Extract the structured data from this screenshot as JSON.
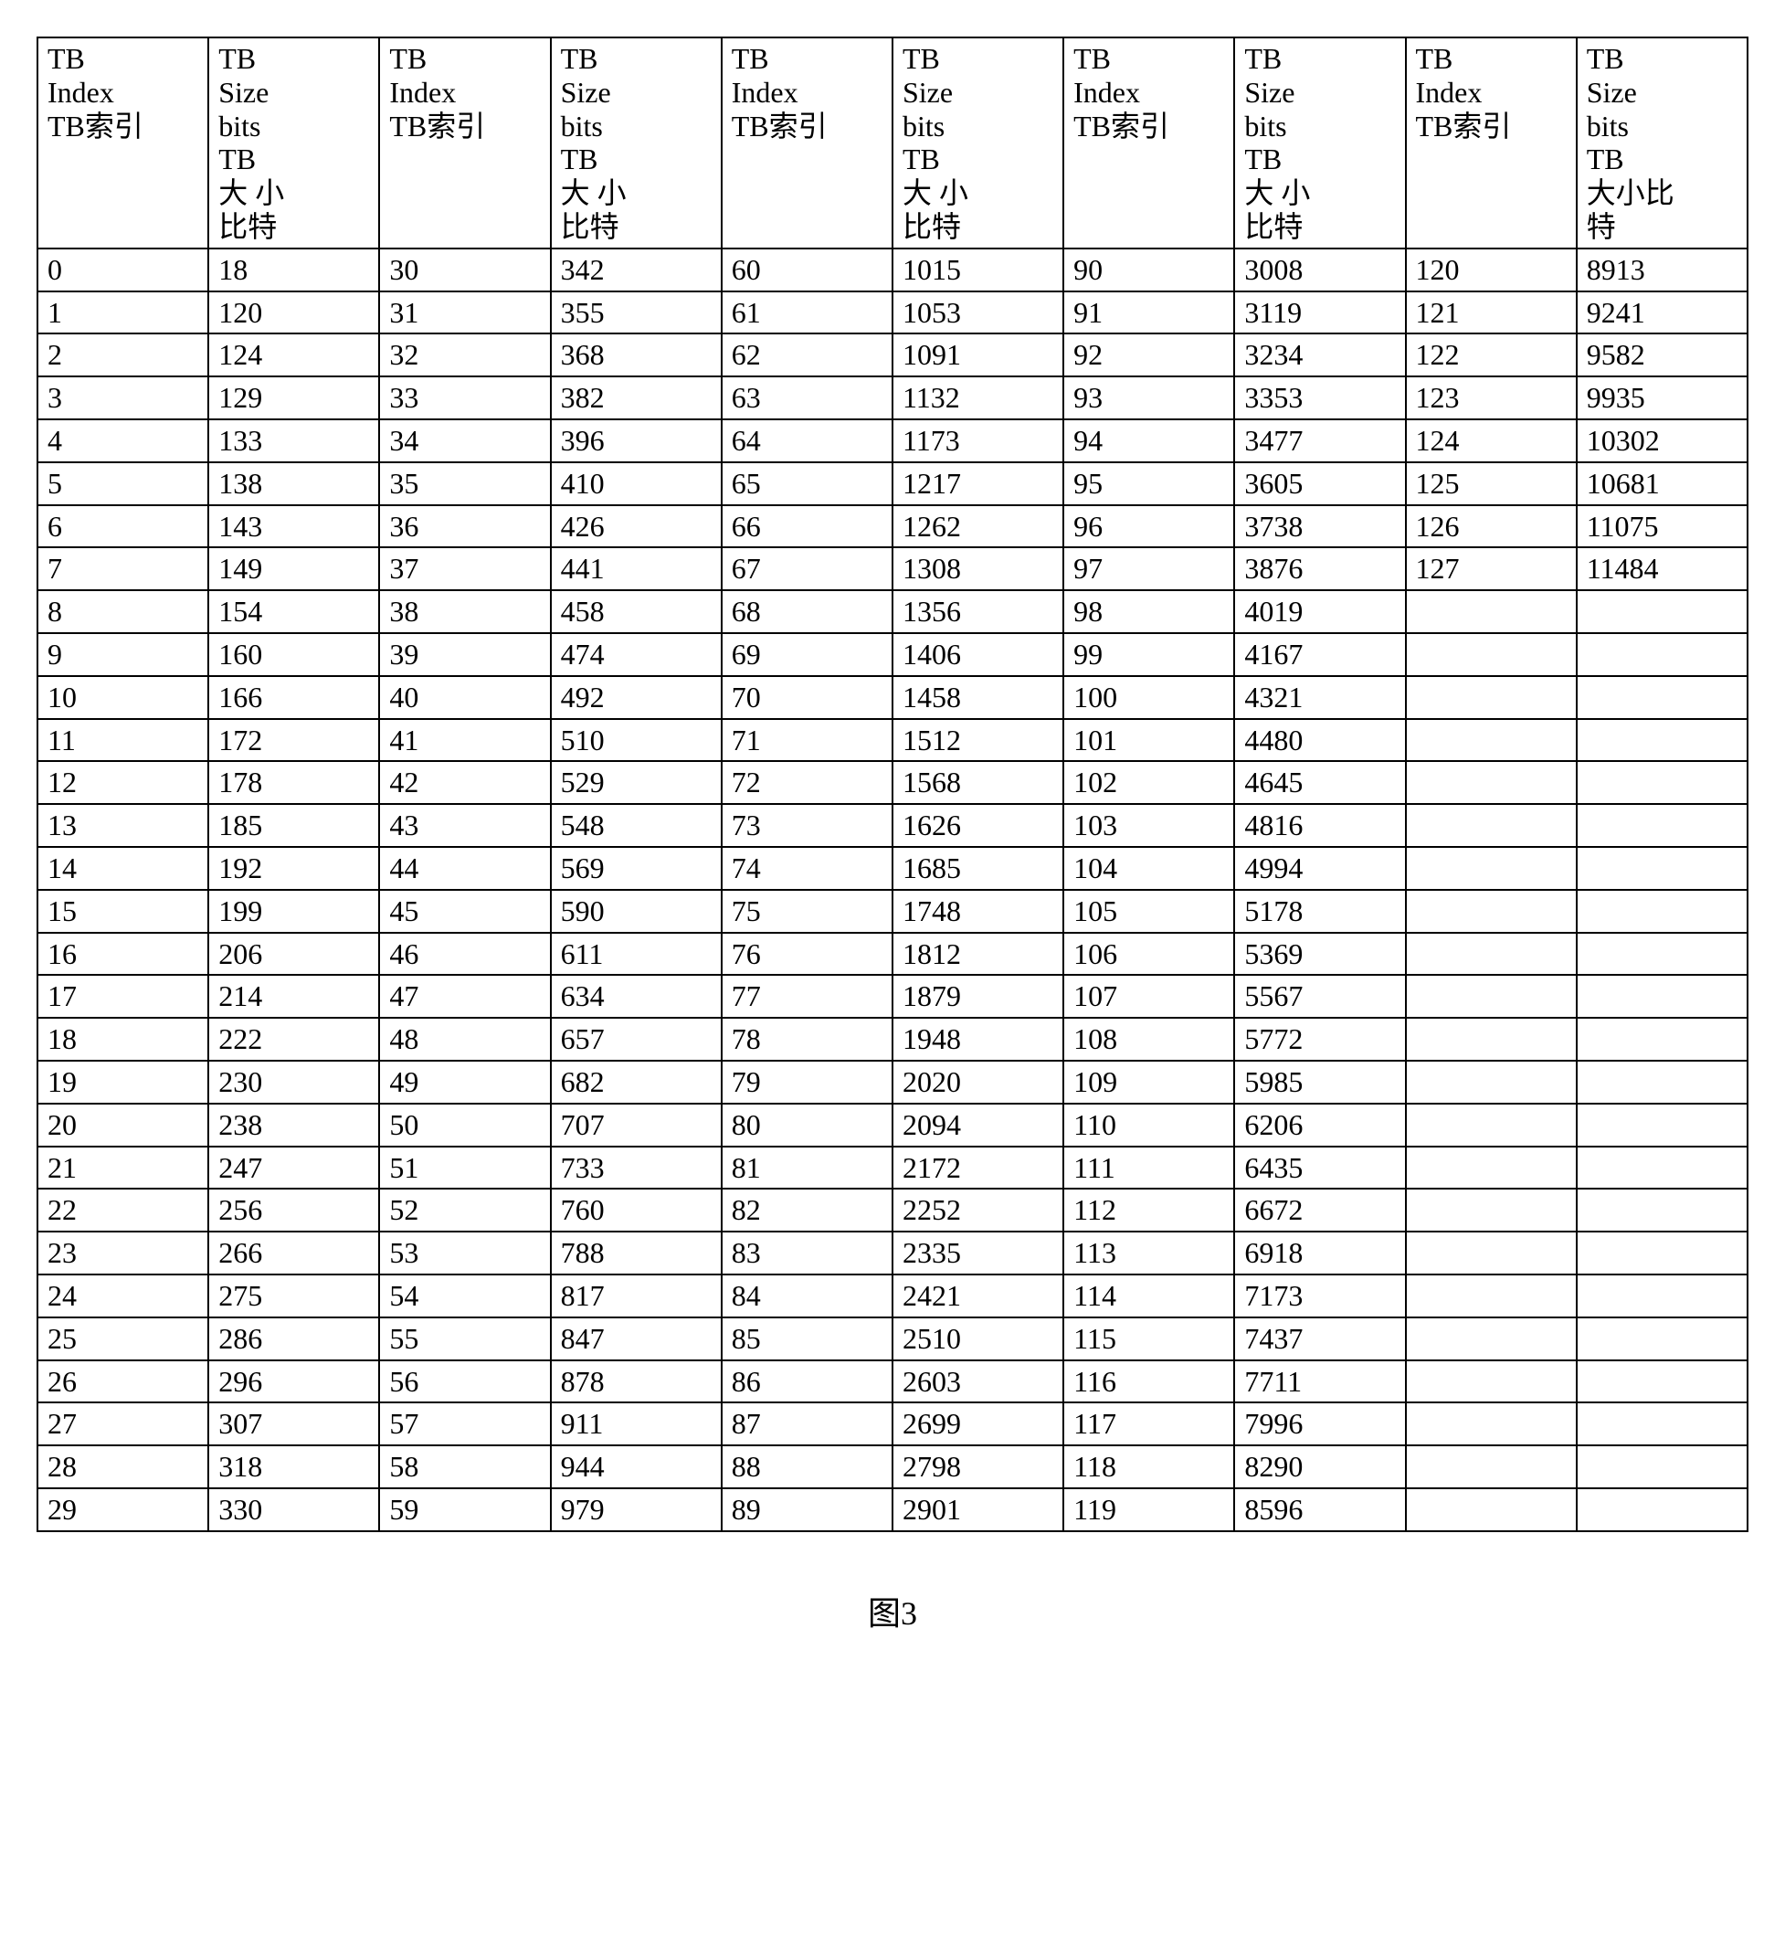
{
  "table": {
    "background_color": "#ffffff",
    "border_color": "#000000",
    "font_family": "Times New Roman / SimSun",
    "header_fontsize": 32,
    "cell_fontsize": 32,
    "border_width": 2,
    "headers": [
      "TB\nIndex\nTB索引",
      "TB\nSize\nbits\nTB\n大 小\n比特",
      "TB\nIndex\nTB索引",
      "TB\nSize\nbits\nTB\n大 小\n比特",
      "TB\nIndex\nTB索引",
      "TB\nSize\nbits\nTB\n大 小\n比特",
      "TB\nIndex\nTB索引",
      "TB\nSize\nbits\nTB\n大 小\n比特",
      "TB\nIndex\nTB索引",
      "TB\nSize\nbits\nTB\n大小比\n特"
    ],
    "rows": [
      [
        "0",
        "18",
        "30",
        "342",
        "60",
        "1015",
        "90",
        "3008",
        "120",
        "8913"
      ],
      [
        "1",
        "120",
        "31",
        "355",
        "61",
        "1053",
        "91",
        "3119",
        "121",
        "9241"
      ],
      [
        "2",
        "124",
        "32",
        "368",
        "62",
        "1091",
        "92",
        "3234",
        "122",
        "9582"
      ],
      [
        "3",
        "129",
        "33",
        "382",
        "63",
        "1132",
        "93",
        "3353",
        "123",
        "9935"
      ],
      [
        "4",
        "133",
        "34",
        "396",
        "64",
        "1173",
        "94",
        "3477",
        "124",
        "10302"
      ],
      [
        "5",
        "138",
        "35",
        "410",
        "65",
        "1217",
        "95",
        "3605",
        "125",
        "10681"
      ],
      [
        "6",
        "143",
        "36",
        "426",
        "66",
        "1262",
        "96",
        "3738",
        "126",
        "11075"
      ],
      [
        "7",
        "149",
        "37",
        "441",
        "67",
        "1308",
        "97",
        "3876",
        "127",
        "11484"
      ],
      [
        "8",
        "154",
        "38",
        "458",
        "68",
        "1356",
        "98",
        "4019",
        "",
        ""
      ],
      [
        "9",
        "160",
        "39",
        "474",
        "69",
        "1406",
        "99",
        "4167",
        "",
        ""
      ],
      [
        "10",
        "166",
        "40",
        "492",
        "70",
        "1458",
        "100",
        "4321",
        "",
        ""
      ],
      [
        "11",
        "172",
        "41",
        "510",
        "71",
        "1512",
        "101",
        "4480",
        "",
        ""
      ],
      [
        "12",
        "178",
        "42",
        "529",
        "72",
        "1568",
        "102",
        "4645",
        "",
        ""
      ],
      [
        "13",
        "185",
        "43",
        "548",
        "73",
        "1626",
        "103",
        "4816",
        "",
        ""
      ],
      [
        "14",
        "192",
        "44",
        "569",
        "74",
        "1685",
        "104",
        "4994",
        "",
        ""
      ],
      [
        "15",
        "199",
        "45",
        "590",
        "75",
        "1748",
        "105",
        "5178",
        "",
        ""
      ],
      [
        "16",
        "206",
        "46",
        "611",
        "76",
        "1812",
        "106",
        "5369",
        "",
        ""
      ],
      [
        "17",
        "214",
        "47",
        "634",
        "77",
        "1879",
        "107",
        "5567",
        "",
        ""
      ],
      [
        "18",
        "222",
        "48",
        "657",
        "78",
        "1948",
        "108",
        "5772",
        "",
        ""
      ],
      [
        "19",
        "230",
        "49",
        "682",
        "79",
        "2020",
        "109",
        "5985",
        "",
        ""
      ],
      [
        "20",
        "238",
        "50",
        "707",
        "80",
        "2094",
        "110",
        "6206",
        "",
        ""
      ],
      [
        "21",
        "247",
        "51",
        "733",
        "81",
        "2172",
        "111",
        "6435",
        "",
        ""
      ],
      [
        "22",
        "256",
        "52",
        "760",
        "82",
        "2252",
        "112",
        "6672",
        "",
        ""
      ],
      [
        "23",
        "266",
        "53",
        "788",
        "83",
        "2335",
        "113",
        "6918",
        "",
        ""
      ],
      [
        "24",
        "275",
        "54",
        "817",
        "84",
        "2421",
        "114",
        "7173",
        "",
        ""
      ],
      [
        "25",
        "286",
        "55",
        "847",
        "85",
        "2510",
        "115",
        "7437",
        "",
        ""
      ],
      [
        "26",
        "296",
        "56",
        "878",
        "86",
        "2603",
        "116",
        "7711",
        "",
        ""
      ],
      [
        "27",
        "307",
        "57",
        "911",
        "87",
        "2699",
        "117",
        "7996",
        "",
        ""
      ],
      [
        "28",
        "318",
        "58",
        "944",
        "88",
        "2798",
        "118",
        "8290",
        "",
        ""
      ],
      [
        "29",
        "330",
        "59",
        "979",
        "89",
        "2901",
        "119",
        "8596",
        "",
        ""
      ]
    ]
  },
  "caption": "图3"
}
